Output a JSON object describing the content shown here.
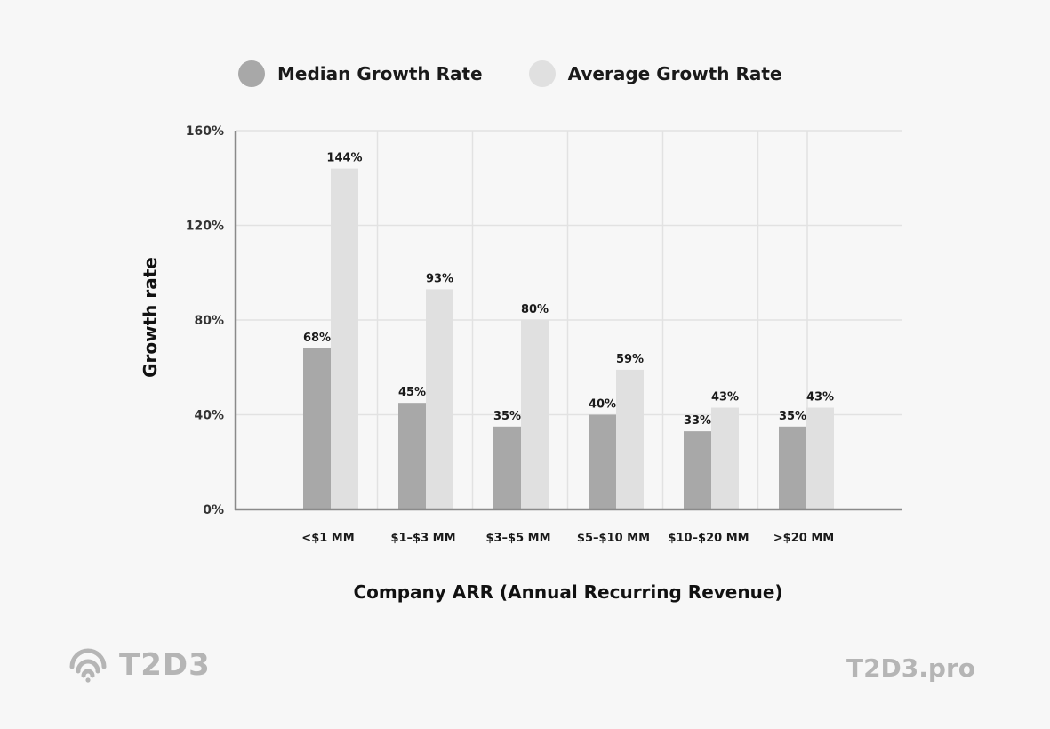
{
  "legend": {
    "median_label": "Median Growth Rate",
    "average_label": "Average Growth Rate"
  },
  "colors": {
    "median": "#a8a8a8",
    "average": "#e0e0e0",
    "grid": "#e2e2e2",
    "axis": "#8a8a8a",
    "brand": "#b5b5b5"
  },
  "chart_data": {
    "type": "bar",
    "categories": [
      "<$1 MM",
      "$1–$3 MM",
      "$3–$5 MM",
      "$5–$10 MM",
      "$10–$20 MM",
      ">$20 MM"
    ],
    "series": [
      {
        "name": "Median Growth Rate",
        "values": [
          68,
          45,
          35,
          40,
          33,
          35
        ]
      },
      {
        "name": "Average Growth Rate",
        "values": [
          144,
          93,
          80,
          59,
          43,
          43
        ]
      }
    ],
    "data_labels": [
      [
        "68%",
        "45%",
        "35%",
        "40%",
        "33%",
        "35%"
      ],
      [
        "144%",
        "93%",
        "80%",
        "59%",
        "43%",
        "43%"
      ]
    ],
    "yticks": [
      "0%",
      "40%",
      "80%",
      "120%",
      "160%"
    ],
    "ylim": [
      0,
      160
    ],
    "xlabel": "Company ARR (Annual Recurring Revenue)",
    "ylabel": "Growth rate",
    "grid": true,
    "legend_position": "top-left"
  },
  "brand": {
    "logo_text": "T2D3",
    "website": "T2D3.pro"
  }
}
